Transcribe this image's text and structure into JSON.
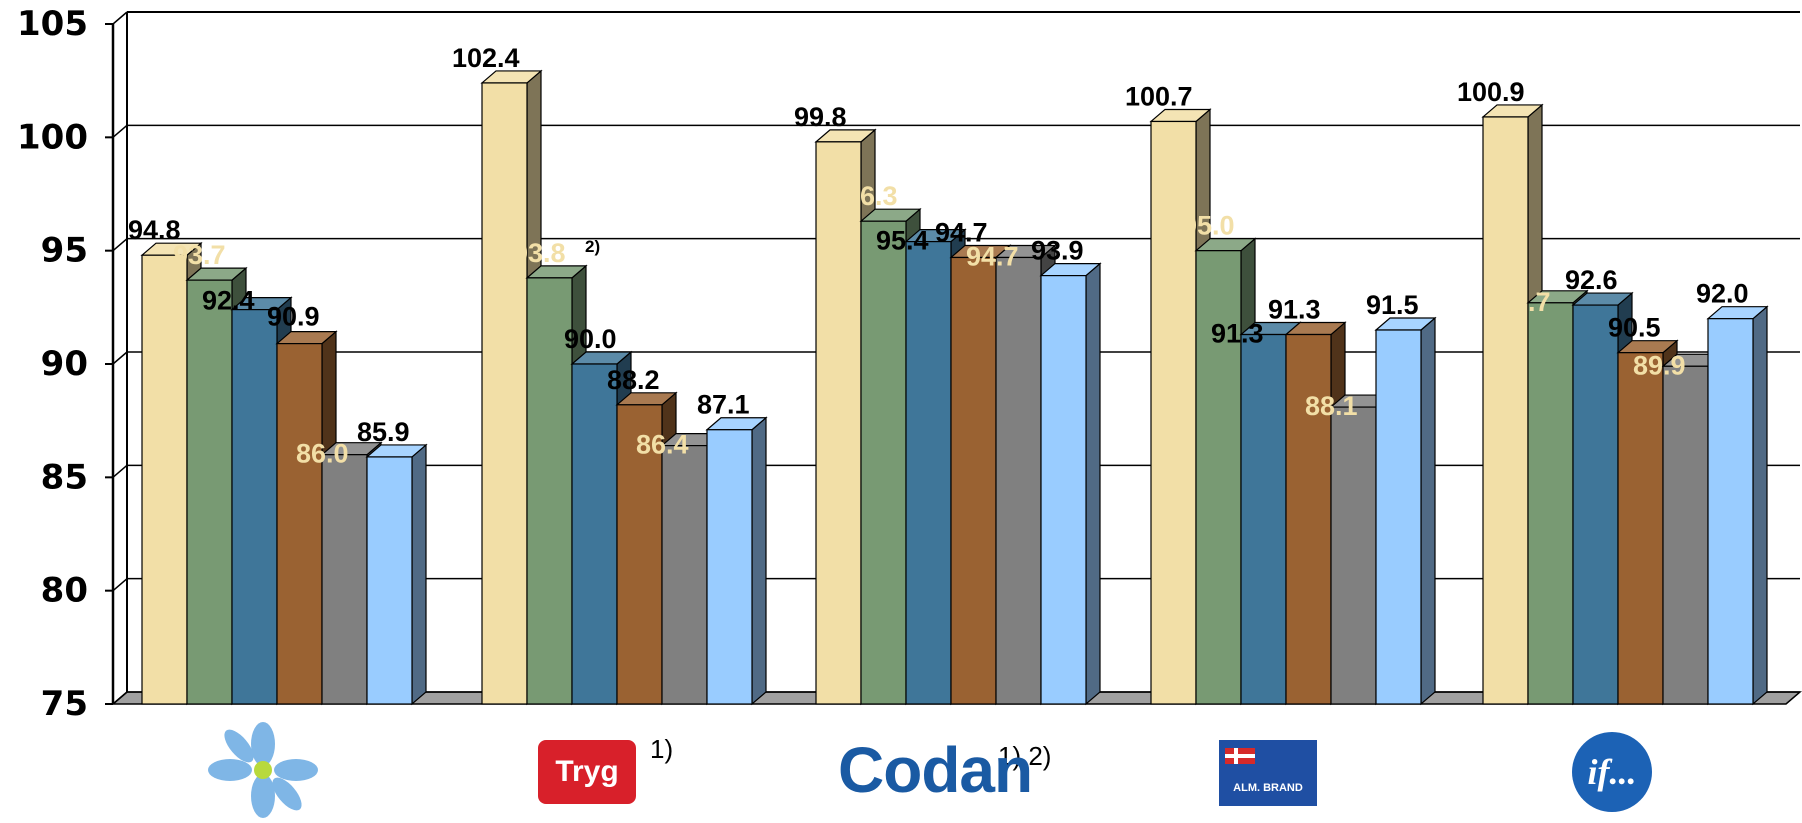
{
  "chart_data": {
    "type": "bar",
    "title": "",
    "xlabel": "",
    "ylabel": "",
    "ylim": [
      75,
      105
    ],
    "yticks": [
      "75",
      "80",
      "85",
      "90",
      "95",
      "100",
      "105"
    ],
    "grid": true,
    "style": "3d-clustered-bar",
    "groups": [
      {
        "brand": "logo-flower",
        "footnote": "",
        "values": [
          94.8,
          93.7,
          92.4,
          90.9,
          86.0,
          85.9
        ],
        "labels": [
          "94.8",
          "93.7",
          "92.4",
          "90.9",
          "86.0",
          "85.9"
        ]
      },
      {
        "brand": "Tryg",
        "footnote": "1)",
        "values": [
          102.4,
          93.8,
          90.0,
          88.2,
          86.4,
          87.1
        ],
        "labels": [
          "102.4",
          "93.8",
          "90.0",
          "88.2",
          "86.4",
          "87.1"
        ],
        "label_note": "2)"
      },
      {
        "brand": "Codan",
        "footnote": "1) 2)",
        "values": [
          99.8,
          96.3,
          95.4,
          94.7,
          94.7,
          93.9
        ],
        "labels": [
          "99.8",
          "96.3",
          "95.4",
          "94.7",
          "94.7",
          "93.9"
        ]
      },
      {
        "brand": "ALM. BRAND",
        "footnote": "",
        "values": [
          100.7,
          95.0,
          91.3,
          91.3,
          88.1,
          91.5
        ],
        "labels": [
          "100.7",
          "95.0",
          "91.3",
          "91.3",
          "88.1",
          "91.5"
        ]
      },
      {
        "brand": "if...",
        "footnote": "",
        "values": [
          100.9,
          92.7,
          92.6,
          90.5,
          89.9,
          92.0
        ],
        "labels": [
          "100.9",
          "92.7",
          "92.6",
          "90.5",
          "89.9",
          "92.0"
        ]
      }
    ],
    "series_colors": [
      "#f2dfa7",
      "#789a73",
      "#3f7699",
      "#9a6232",
      "#808080",
      "#99ccff"
    ],
    "label_colors": [
      "#000000",
      "#f2dfa7",
      "#000000",
      "#000000",
      "#f2dfa7",
      "#000000"
    ]
  },
  "logos": {
    "tryg_text": "Tryg",
    "codan_text": "Codan",
    "almbrand_text": "ALM. BRAND",
    "if_text": "if..."
  }
}
